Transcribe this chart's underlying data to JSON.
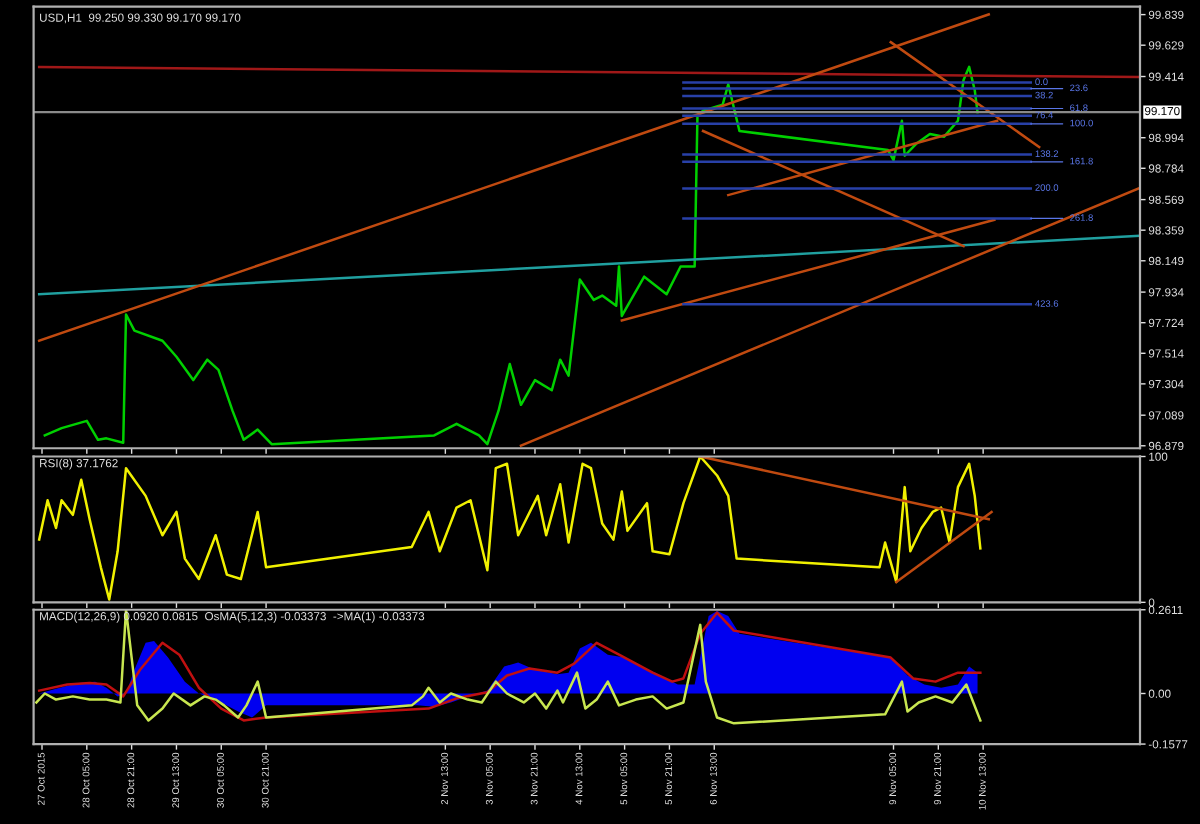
{
  "chart_data": [
    {
      "type": "line",
      "annotations": [
        "USD,H1  99.250 99.330 99.170 99.170",
        {
          "text": "0.0",
          "x": "2015-11-11T06:00",
          "y": 99.373
        },
        {
          "text": "23.6",
          "x": "2015-11-11T06:00",
          "y": 99.331
        },
        {
          "text": "38.2",
          "x": "2015-11-11T06:00",
          "y": 99.281
        },
        {
          "text": "61.8",
          "x": "2015-11-11T06:00",
          "y": 99.194
        },
        {
          "text": "76.4",
          "x": "2015-11-11T06:00",
          "y": 99.144
        },
        {
          "text": "100.0",
          "x": "2015-11-11T06:00",
          "y": 99.089
        },
        {
          "text": "138.2",
          "x": "2015-11-11T06:00",
          "y": 98.879
        },
        {
          "text": "161.8",
          "x": "2015-11-11T06:00",
          "y": 98.828
        },
        {
          "text": "200.0",
          "x": "2015-11-11T06:00",
          "y": 98.646
        },
        {
          "text": "261.8",
          "x": "2015-11-11T06:00",
          "y": 98.44
        },
        {
          "text": "423.6",
          "x": "2015-11-11T06:00",
          "y": 97.85
        }
      ],
      "xlim": [
        "2015-10-27T10:00",
        "2015-11-12T21:00"
      ],
      "ylim": [
        96.862,
        99.894
      ],
      "yticks": [
        99.839,
        99.629,
        99.414,
        98.994,
        98.784,
        98.569,
        98.359,
        98.149,
        97.934,
        97.724,
        97.514,
        97.304,
        97.089,
        96.879
      ],
      "xticks": [
        {
          "value": "2015-10-27T13:00",
          "label": null
        },
        {
          "value": "2015-10-28T05:00",
          "label": null
        },
        {
          "value": "2015-10-28T21:00",
          "label": null
        },
        {
          "value": "2015-10-29T13:00",
          "label": null
        },
        {
          "value": "2015-10-30T05:00",
          "label": null
        },
        {
          "value": "2015-10-30T21:00",
          "label": null
        },
        {
          "value": "2015-11-02T13:00",
          "label": null
        },
        {
          "value": "2015-11-03T05:00",
          "label": null
        },
        {
          "value": "2015-11-03T21:00",
          "label": null
        },
        {
          "value": "2015-11-04T13:00",
          "label": null
        },
        {
          "value": "2015-11-05T05:00",
          "label": null
        },
        {
          "value": "2015-11-05T21:00",
          "label": null
        },
        {
          "value": "2015-11-06T13:00",
          "label": null
        },
        {
          "value": "2015-11-09T05:00",
          "label": null
        },
        {
          "value": "2015-11-09T21:00",
          "label": null
        },
        {
          "value": "2015-11-10T13:00",
          "label": null
        }
      ],
      "tick_labels": "y",
      "ref_lines": [
        {
          "axis": "y",
          "value": 99.17,
          "label": "99.170",
          "color": "#8a8a8a"
        }
      ],
      "series": [
        {
          "color": "#00d000",
          "x": [
            "2015-10-27T14:00",
            "2015-10-27T20:00",
            "2015-10-28T05:00",
            "2015-10-28T09:00",
            "2015-10-28T12:00",
            "2015-10-28T18:00",
            "2015-10-28T19:00",
            "2015-10-28T22:00",
            "2015-10-29T08:00",
            "2015-10-29T13:00",
            "2015-10-29T19:00",
            "2015-10-30T00:00",
            "2015-10-30T04:00",
            "2015-10-30T09:00",
            "2015-10-30T13:00",
            "2015-10-30T18:00",
            "2015-10-30T23:00",
            "2015-11-02T09:00",
            "2015-11-02T17:00",
            "2015-11-03T01:00",
            "2015-11-03T04:00",
            "2015-11-03T08:00",
            "2015-11-03T12:00",
            "2015-11-03T16:00",
            "2015-11-03T21:00",
            "2015-11-04T03:00",
            "2015-11-04T06:00",
            "2015-11-04T09:00",
            "2015-11-04T13:00",
            "2015-11-04T18:00",
            "2015-11-04T21:00",
            "2015-11-05T02:00",
            "2015-11-05T03:00",
            "2015-11-05T04:00",
            "2015-11-05T12:00",
            "2015-11-05T20:00",
            "2015-11-06T01:00",
            "2015-11-06T06:00",
            "2015-11-06T07:00",
            "2015-11-06T09:00",
            "2015-11-06T16:00",
            "2015-11-06T18:00",
            "2015-11-06T22:00",
            "2015-11-09T03:00",
            "2015-11-09T05:00",
            "2015-11-09T08:00",
            "2015-11-09T09:00",
            "2015-11-09T13:00",
            "2015-11-09T18:00",
            "2015-11-09T23:00",
            "2015-11-10T04:00",
            "2015-11-10T06:00",
            "2015-11-10T08:00",
            "2015-11-10T10:00",
            "2015-11-10T11:00"
          ],
          "values": [
            96.95,
            97.0,
            97.05,
            96.92,
            96.93,
            96.9,
            97.78,
            97.67,
            97.6,
            97.49,
            97.33,
            97.47,
            97.4,
            97.12,
            96.92,
            96.99,
            96.89,
            96.95,
            97.03,
            96.95,
            96.89,
            97.12,
            97.44,
            97.16,
            97.33,
            97.26,
            97.47,
            97.36,
            98.02,
            97.88,
            97.91,
            97.84,
            98.11,
            97.77,
            98.04,
            97.92,
            98.11,
            98.11,
            99.14,
            99.18,
            99.22,
            99.36,
            99.04,
            98.91,
            98.84,
            99.11,
            98.87,
            98.95,
            99.02,
            99.0,
            99.11,
            99.39,
            99.48,
            99.32,
            99.17
          ]
        },
        {
          "color": "#a01818",
          "x": [
            "2015-10-27T12:00",
            "2015-11-12T21:00"
          ],
          "values": [
            99.48,
            99.41
          ]
        },
        {
          "color": "#20a0a0",
          "x": [
            "2015-10-27T12:00",
            "2015-11-12T21:00"
          ],
          "values": [
            97.92,
            98.32
          ]
        },
        {
          "color": "#c04a10",
          "x": [
            "2015-10-27T12:00",
            "2015-11-10T15:00"
          ],
          "values": [
            97.6,
            99.84
          ]
        },
        {
          "color": "#c04a10",
          "x": [
            "2015-11-03T16:00",
            "2015-11-12T21:00"
          ],
          "values": [
            96.88,
            98.65
          ]
        },
        {
          "color": "#c04a10",
          "x": [
            "2015-11-05T04:00",
            "2015-11-10T17:00"
          ],
          "values": [
            97.74,
            98.43
          ]
        },
        {
          "color": "#c04a10",
          "x": [
            "2015-11-09T04:00",
            "2015-11-11T09:00"
          ],
          "values": [
            99.65,
            98.93
          ]
        },
        {
          "color": "#c04a10",
          "x": [
            "2015-11-06T09:00",
            "2015-11-10T06:00"
          ],
          "values": [
            99.04,
            98.25
          ]
        },
        {
          "color": "#c04a10",
          "x": [
            "2015-11-06T18:00",
            "2015-11-10T18:00"
          ],
          "values": [
            98.6,
            99.11
          ]
        },
        {
          "color": "#2840a8",
          "x": [
            "2015-11-06T02:00",
            "2015-11-11T06:00"
          ],
          "values": [
            99.373,
            99.373
          ]
        },
        {
          "color": "#2840a8",
          "x": [
            "2015-11-06T02:00",
            "2015-11-11T06:00"
          ],
          "values": [
            99.331,
            99.331
          ]
        },
        {
          "color": "#2840a8",
          "x": [
            "2015-11-06T02:00",
            "2015-11-11T06:00"
          ],
          "values": [
            99.281,
            99.281
          ]
        },
        {
          "color": "#2840a8",
          "x": [
            "2015-11-06T02:00",
            "2015-11-11T06:00"
          ],
          "values": [
            99.194,
            99.194
          ]
        },
        {
          "color": "#2840a8",
          "x": [
            "2015-11-06T02:00",
            "2015-11-11T06:00"
          ],
          "values": [
            99.144,
            99.144
          ]
        },
        {
          "color": "#2840a8",
          "x": [
            "2015-11-06T02:00",
            "2015-11-11T06:00"
          ],
          "values": [
            99.089,
            99.089
          ]
        },
        {
          "color": "#2840a8",
          "x": [
            "2015-11-06T02:00",
            "2015-11-11T06:00"
          ],
          "values": [
            98.879,
            98.879
          ]
        },
        {
          "color": "#2840a8",
          "x": [
            "2015-11-06T02:00",
            "2015-11-11T06:00"
          ],
          "values": [
            98.828,
            98.828
          ]
        },
        {
          "color": "#2840a8",
          "x": [
            "2015-11-06T02:00",
            "2015-11-11T06:00"
          ],
          "values": [
            98.646,
            98.646
          ]
        },
        {
          "color": "#2840a8",
          "x": [
            "2015-11-06T02:00",
            "2015-11-11T06:00"
          ],
          "values": [
            98.44,
            98.44
          ]
        },
        {
          "color": "#2840a8",
          "x": [
            "2015-11-06T02:00",
            "2015-11-11T06:00"
          ],
          "values": [
            97.85,
            97.85
          ]
        }
      ]
    },
    {
      "type": "line",
      "annotations": [
        "RSI(8) 37.1762"
      ],
      "xlim": [
        "2015-10-27T10:00",
        "2015-11-12T21:00"
      ],
      "ylim": [
        0,
        100
      ],
      "yticks": [
        0,
        100
      ],
      "tick_labels": "y",
      "xticks": [
        {
          "value": "2015-10-27T13:00",
          "label": null
        },
        {
          "value": "2015-10-28T05:00",
          "label": null
        },
        {
          "value": "2015-10-28T21:00",
          "label": null
        },
        {
          "value": "2015-10-29T13:00",
          "label": null
        },
        {
          "value": "2015-10-30T05:00",
          "label": null
        },
        {
          "value": "2015-10-30T21:00",
          "label": null
        },
        {
          "value": "2015-11-02T13:00",
          "label": null
        },
        {
          "value": "2015-11-03T05:00",
          "label": null
        },
        {
          "value": "2015-11-03T21:00",
          "label": null
        },
        {
          "value": "2015-11-04T13:00",
          "label": null
        },
        {
          "value": "2015-11-05T05:00",
          "label": null
        },
        {
          "value": "2015-11-05T21:00",
          "label": null
        },
        {
          "value": "2015-11-06T13:00",
          "label": null
        },
        {
          "value": "2015-11-09T05:00",
          "label": null
        },
        {
          "value": "2015-11-09T21:00",
          "label": null
        },
        {
          "value": "2015-11-10T13:00",
          "label": null
        }
      ],
      "series": [
        {
          "color": "#f0f000",
          "x": [
            "2015-10-27T12:00",
            "2015-10-27T15:00",
            "2015-10-27T18:00",
            "2015-10-27T20:00",
            "2015-10-28T00:00",
            "2015-10-28T03:00",
            "2015-10-28T06:00",
            "2015-10-28T10:00",
            "2015-10-28T13:00",
            "2015-10-28T16:00",
            "2015-10-28T19:00",
            "2015-10-29T02:00",
            "2015-10-29T08:00",
            "2015-10-29T13:00",
            "2015-10-29T16:00",
            "2015-10-29T21:00",
            "2015-10-30T03:00",
            "2015-10-30T07:00",
            "2015-10-30T12:00",
            "2015-10-30T18:00",
            "2015-10-30T21:00",
            "2015-11-02T01:00",
            "2015-11-02T07:00",
            "2015-11-02T11:00",
            "2015-11-02T17:00",
            "2015-11-02T22:00",
            "2015-11-03T04:00",
            "2015-11-03T07:00",
            "2015-11-03T11:00",
            "2015-11-03T15:00",
            "2015-11-03T22:00",
            "2015-11-04T01:00",
            "2015-11-04T06:00",
            "2015-11-04T09:00",
            "2015-11-04T14:00",
            "2015-11-04T17:00",
            "2015-11-04T21:00",
            "2015-11-05T01:00",
            "2015-11-05T04:00",
            "2015-11-05T06:00",
            "2015-11-05T13:00",
            "2015-11-05T15:00",
            "2015-11-05T21:00",
            "2015-11-06T02:00",
            "2015-11-06T08:00",
            "2015-11-06T14:00",
            "2015-11-06T18:00",
            "2015-11-06T21:00",
            "2015-11-09T00:00",
            "2015-11-09T02:00",
            "2015-11-09T06:00",
            "2015-11-09T09:00",
            "2015-11-09T11:00",
            "2015-11-09T15:00",
            "2015-11-09T19:00",
            "2015-11-09T22:00",
            "2015-11-10T01:00",
            "2015-11-10T04:00",
            "2015-11-10T08:00",
            "2015-11-10T10:00",
            "2015-11-10T12:00"
          ],
          "values": [
            43,
            70,
            51,
            70,
            60,
            84,
            57,
            24,
            2,
            35,
            92,
            73,
            46,
            62,
            30,
            16,
            46,
            19,
            16,
            62,
            24,
            38,
            62,
            35,
            65,
            70,
            22,
            92,
            95,
            46,
            73,
            46,
            81,
            41,
            95,
            92,
            54,
            43,
            76,
            49,
            68,
            35,
            33,
            68,
            100,
            87,
            73,
            30,
            24,
            41,
            14,
            79,
            35,
            51,
            62,
            65,
            41,
            79,
            95,
            73,
            37
          ]
        },
        {
          "color": "#c04a10",
          "x": [
            "2015-11-06T08:00",
            "2015-11-10T15:00"
          ],
          "values": [
            100,
            57
          ]
        },
        {
          "color": "#c04a10",
          "x": [
            "2015-11-09T06:00",
            "2015-11-10T16:00"
          ],
          "values": [
            14,
            62
          ]
        }
      ]
    },
    {
      "type": "line",
      "annotations": [
        "MACD(12,26,9) 0.0920 0.0815  OsMA(5,12,3) -0.03373  ->MA(1) -0.03373"
      ],
      "xlim": [
        "2015-10-27T10:00",
        "2015-11-12T21:00"
      ],
      "ylim": [
        -0.1577,
        0.2611
      ],
      "yticks": [
        0.2611,
        {
          "value": 0,
          "label": "0.00"
        },
        -0.1577
      ],
      "xticks": [
        {
          "value": "2015-10-27T13:00",
          "label": "27 Oct 2015"
        },
        {
          "value": "2015-10-28T05:00",
          "label": "28 Oct 05:00"
        },
        {
          "value": "2015-10-28T21:00",
          "label": "28 Oct 21:00"
        },
        {
          "value": "2015-10-29T13:00",
          "label": "29 Oct 13:00"
        },
        {
          "value": "2015-10-30T05:00",
          "label": "30 Oct 05:00"
        },
        {
          "value": "2015-10-30T21:00",
          "label": "30 Oct 21:00"
        },
        {
          "value": "2015-11-02T13:00",
          "label": "2 Nov 13:00"
        },
        {
          "value": "2015-11-03T05:00",
          "label": "3 Nov 05:00"
        },
        {
          "value": "2015-11-03T21:00",
          "label": "3 Nov 21:00"
        },
        {
          "value": "2015-11-04T13:00",
          "label": "4 Nov 13:00"
        },
        {
          "value": "2015-11-05T05:00",
          "label": "5 Nov 05:00"
        },
        {
          "value": "2015-11-05T21:00",
          "label": "5 Nov 21:00"
        },
        {
          "value": "2015-11-06T13:00",
          "label": "6 Nov 13:00"
        },
        {
          "value": "2015-11-09T05:00",
          "label": "9 Nov 05:00"
        },
        {
          "value": "2015-11-09T21:00",
          "label": "9 Nov 21:00"
        },
        {
          "value": "2015-11-10T13:00",
          "label": "10 Nov 13:00"
        }
      ],
      "series": [
        {
          "type": "area",
          "color": "#0000f0",
          "x": [
            "2015-10-27T12:00",
            "2015-10-27T18:00",
            "2015-10-28T02:00",
            "2015-10-28T08:00",
            "2015-10-28T12:00",
            "2015-10-28T16:00",
            "2015-10-28T19:00",
            "2015-10-28T22:00",
            "2015-10-29T02:00",
            "2015-10-29T05:00",
            "2015-10-29T10:00",
            "2015-10-29T16:00",
            "2015-10-29T21:00",
            "2015-10-30T03:00",
            "2015-10-30T11:00",
            "2015-10-30T16:00",
            "2015-10-30T21:00",
            "2015-11-02T03:00",
            "2015-11-02T09:00",
            "2015-11-02T15:00",
            "2015-11-02T21:00",
            "2015-11-03T04:00",
            "2015-11-03T10:00",
            "2015-11-03T15:00",
            "2015-11-03T21:00",
            "2015-11-04T05:00",
            "2015-11-04T09:00",
            "2015-11-04T13:00",
            "2015-11-04T17:00",
            "2015-11-04T23:00",
            "2015-11-05T05:00",
            "2015-11-05T11:00",
            "2015-11-05T16:00",
            "2015-11-06T00:00",
            "2015-11-06T06:00",
            "2015-11-06T11:00",
            "2015-11-06T14:00",
            "2015-11-06T18:00",
            "2015-11-06T22:00",
            "2015-11-09T04:00",
            "2015-11-09T10:00",
            "2015-11-09T16:00",
            "2015-11-09T22:00",
            "2015-11-10T04:00",
            "2015-11-10T08:00",
            "2015-11-10T11:00"
          ],
          "values": [
            0.0,
            0.015,
            0.033,
            0.037,
            0.018,
            -0.009,
            0.0,
            0.074,
            0.158,
            0.164,
            0.112,
            0.037,
            0.0,
            -0.019,
            -0.056,
            -0.075,
            -0.037,
            -0.037,
            -0.041,
            -0.028,
            -0.009,
            0.009,
            0.084,
            0.097,
            0.074,
            0.06,
            0.065,
            0.14,
            0.158,
            0.121,
            0.112,
            0.084,
            0.065,
            0.028,
            0.028,
            0.242,
            0.257,
            0.242,
            0.186,
            0.112,
            0.056,
            0.028,
            0.018,
            0.028,
            0.084,
            0.065
          ]
        },
        {
          "color": "#c01010",
          "x": [
            "2015-10-27T12:00",
            "2015-10-27T22:00",
            "2015-10-28T06:00",
            "2015-10-28T12:00",
            "2015-10-28T18:00",
            "2015-10-29T00:00",
            "2015-10-29T08:00",
            "2015-10-29T14:00",
            "2015-10-29T21:00",
            "2015-10-30T05:00",
            "2015-10-30T13:00",
            "2015-10-30T21:00",
            "2015-11-02T07:00",
            "2015-11-02T17:00",
            "2015-11-03T04:00",
            "2015-11-03T11:00",
            "2015-11-03T19:00",
            "2015-11-04T05:00",
            "2015-11-04T11:00",
            "2015-11-04T19:00",
            "2015-11-05T03:00",
            "2015-11-05T09:00",
            "2015-11-05T15:00",
            "2015-11-05T22:00",
            "2015-11-06T02:00",
            "2015-11-06T08:00",
            "2015-11-06T14:00",
            "2015-11-06T20:00",
            "2015-11-09T04:00",
            "2015-11-09T12:00",
            "2015-11-09T20:00",
            "2015-11-10T04:00",
            "2015-11-10T12:00"
          ],
          "values": [
            0.009,
            0.028,
            0.033,
            0.028,
            -0.009,
            0.074,
            0.158,
            0.121,
            0.018,
            -0.047,
            -0.084,
            -0.075,
            -0.047,
            -0.015,
            0.004,
            0.056,
            0.078,
            0.065,
            0.093,
            0.158,
            0.121,
            0.093,
            0.065,
            0.037,
            0.047,
            0.186,
            0.252,
            0.196,
            0.112,
            0.047,
            0.037,
            0.065,
            0.065
          ]
        },
        {
          "color": "#c8e650",
          "x": [
            "2015-10-27T11:00",
            "2015-10-27T14:00",
            "2015-10-27T18:00",
            "2015-10-28T00:00",
            "2015-10-28T06:00",
            "2015-10-28T12:00",
            "2015-10-28T17:00",
            "2015-10-28T19:00",
            "2015-10-28T21:00",
            "2015-10-28T23:00",
            "2015-10-29T03:00",
            "2015-10-29T08:00",
            "2015-10-29T12:00",
            "2015-10-29T18:00",
            "2015-10-29T23:00",
            "2015-10-30T03:00",
            "2015-10-30T06:00",
            "2015-10-30T11:00",
            "2015-10-30T14:00",
            "2015-10-30T18:00",
            "2015-10-30T21:00",
            "2015-11-02T01:00",
            "2015-11-02T05:00",
            "2015-11-02T07:00",
            "2015-11-02T11:00",
            "2015-11-02T15:00",
            "2015-11-02T21:00",
            "2015-11-03T02:00",
            "2015-11-03T07:00",
            "2015-11-03T11:00",
            "2015-11-03T17:00",
            "2015-11-03T21:00",
            "2015-11-04T01:00",
            "2015-11-04T05:00",
            "2015-11-04T07:00",
            "2015-11-04T12:00",
            "2015-11-04T15:00",
            "2015-11-04T19:00",
            "2015-11-04T23:00",
            "2015-11-05T03:00",
            "2015-11-05T09:00",
            "2015-11-05T15:00",
            "2015-11-05T20:00",
            "2015-11-06T02:00",
            "2015-11-06T08:00",
            "2015-11-06T10:00",
            "2015-11-06T14:00",
            "2015-11-06T20:00",
            "2015-11-09T02:00",
            "2015-11-09T08:00",
            "2015-11-09T10:00",
            "2015-11-09T14:00",
            "2015-11-09T20:00",
            "2015-11-10T02:00",
            "2015-11-10T07:00",
            "2015-11-10T12:00"
          ],
          "values": [
            -0.028,
            0.0,
            -0.019,
            -0.009,
            -0.019,
            -0.019,
            -0.028,
            0.261,
            0.112,
            -0.037,
            -0.084,
            -0.047,
            0.0,
            -0.037,
            -0.009,
            -0.019,
            -0.037,
            -0.075,
            -0.037,
            0.037,
            -0.075,
            -0.037,
            -0.009,
            0.018,
            -0.028,
            0.0,
            -0.019,
            -0.028,
            0.037,
            0.0,
            -0.028,
            0.0,
            -0.047,
            0.009,
            -0.028,
            0.065,
            -0.047,
            -0.019,
            0.037,
            -0.037,
            -0.019,
            -0.009,
            -0.047,
            -0.028,
            0.214,
            0.037,
            -0.075,
            -0.093,
            -0.065,
            0.037,
            -0.056,
            -0.028,
            -0.009,
            -0.028,
            0.028,
            -0.084
          ]
        }
      ]
    }
  ]
}
